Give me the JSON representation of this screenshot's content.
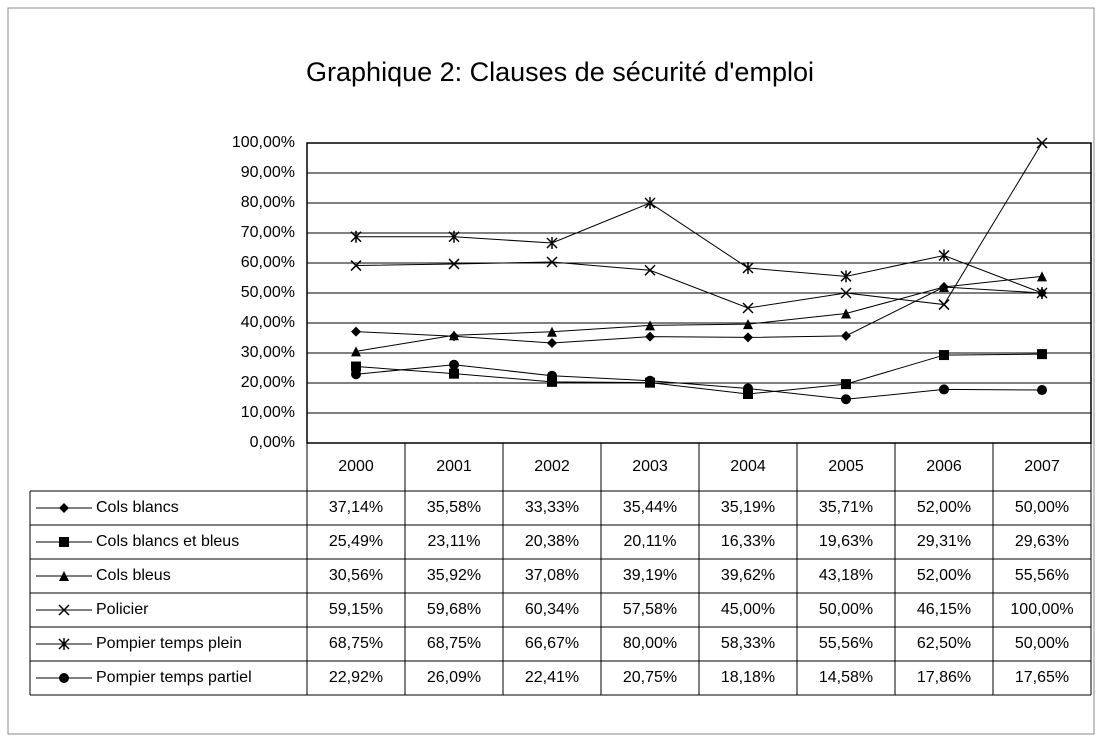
{
  "chart_data": {
    "type": "line",
    "title": "Graphique 2: Clauses de sécurité d'emploi",
    "categories": [
      "2000",
      "2001",
      "2002",
      "2003",
      "2004",
      "2005",
      "2006",
      "2007"
    ],
    "ylim": [
      0,
      100
    ],
    "yticks": [
      {
        "value": 0,
        "label": "0,00%"
      },
      {
        "value": 10,
        "label": "10,00%"
      },
      {
        "value": 20,
        "label": "20,00%"
      },
      {
        "value": 30,
        "label": "30,00%"
      },
      {
        "value": 40,
        "label": "40,00%"
      },
      {
        "value": 50,
        "label": "50,00%"
      },
      {
        "value": 60,
        "label": "60,00%"
      },
      {
        "value": 70,
        "label": "70,00%"
      },
      {
        "value": 80,
        "label": "80,00%"
      },
      {
        "value": 90,
        "label": "90,00%"
      },
      {
        "value": 100,
        "label": "100,00%"
      }
    ],
    "grid": true,
    "series": [
      {
        "name": "Cols blancs",
        "color": "#000000",
        "marker": "diamond",
        "values": [
          37.14,
          35.58,
          33.33,
          35.44,
          35.19,
          35.71,
          52.0,
          50.0
        ],
        "value_labels": [
          "37,14%",
          "35,58%",
          "33,33%",
          "35,44%",
          "35,19%",
          "35,71%",
          "52,00%",
          "50,00%"
        ]
      },
      {
        "name": "Cols blancs et bleus",
        "color": "#000000",
        "marker": "square",
        "values": [
          25.49,
          23.11,
          20.38,
          20.11,
          16.33,
          19.63,
          29.31,
          29.63
        ],
        "value_labels": [
          "25,49%",
          "23,11%",
          "20,38%",
          "20,11%",
          "16,33%",
          "19,63%",
          "29,31%",
          "29,63%"
        ]
      },
      {
        "name": "Cols bleus",
        "color": "#000000",
        "marker": "triangle",
        "values": [
          30.56,
          35.92,
          37.08,
          39.19,
          39.62,
          43.18,
          52.0,
          55.56
        ],
        "value_labels": [
          "30,56%",
          "35,92%",
          "37,08%",
          "39,19%",
          "39,62%",
          "43,18%",
          "52,00%",
          "55,56%"
        ]
      },
      {
        "name": "Policier",
        "color": "#000000",
        "marker": "x",
        "values": [
          59.15,
          59.68,
          60.34,
          57.58,
          45.0,
          50.0,
          46.15,
          100.0
        ],
        "value_labels": [
          "59,15%",
          "59,68%",
          "60,34%",
          "57,58%",
          "45,00%",
          "50,00%",
          "46,15%",
          "100,00%"
        ]
      },
      {
        "name": "Pompier temps plein",
        "color": "#000000",
        "marker": "star",
        "values": [
          68.75,
          68.75,
          66.67,
          80.0,
          58.33,
          55.56,
          62.5,
          50.0
        ],
        "value_labels": [
          "68,75%",
          "68,75%",
          "66,67%",
          "80,00%",
          "58,33%",
          "55,56%",
          "62,50%",
          "50,00%"
        ]
      },
      {
        "name": "Pompier temps partiel",
        "color": "#000000",
        "marker": "circle",
        "values": [
          22.92,
          26.09,
          22.41,
          20.75,
          18.18,
          14.58,
          17.86,
          17.65
        ],
        "value_labels": [
          "22,92%",
          "26,09%",
          "22,41%",
          "20,75%",
          "18,18%",
          "14,58%",
          "17,86%",
          "17,65%"
        ]
      }
    ]
  }
}
